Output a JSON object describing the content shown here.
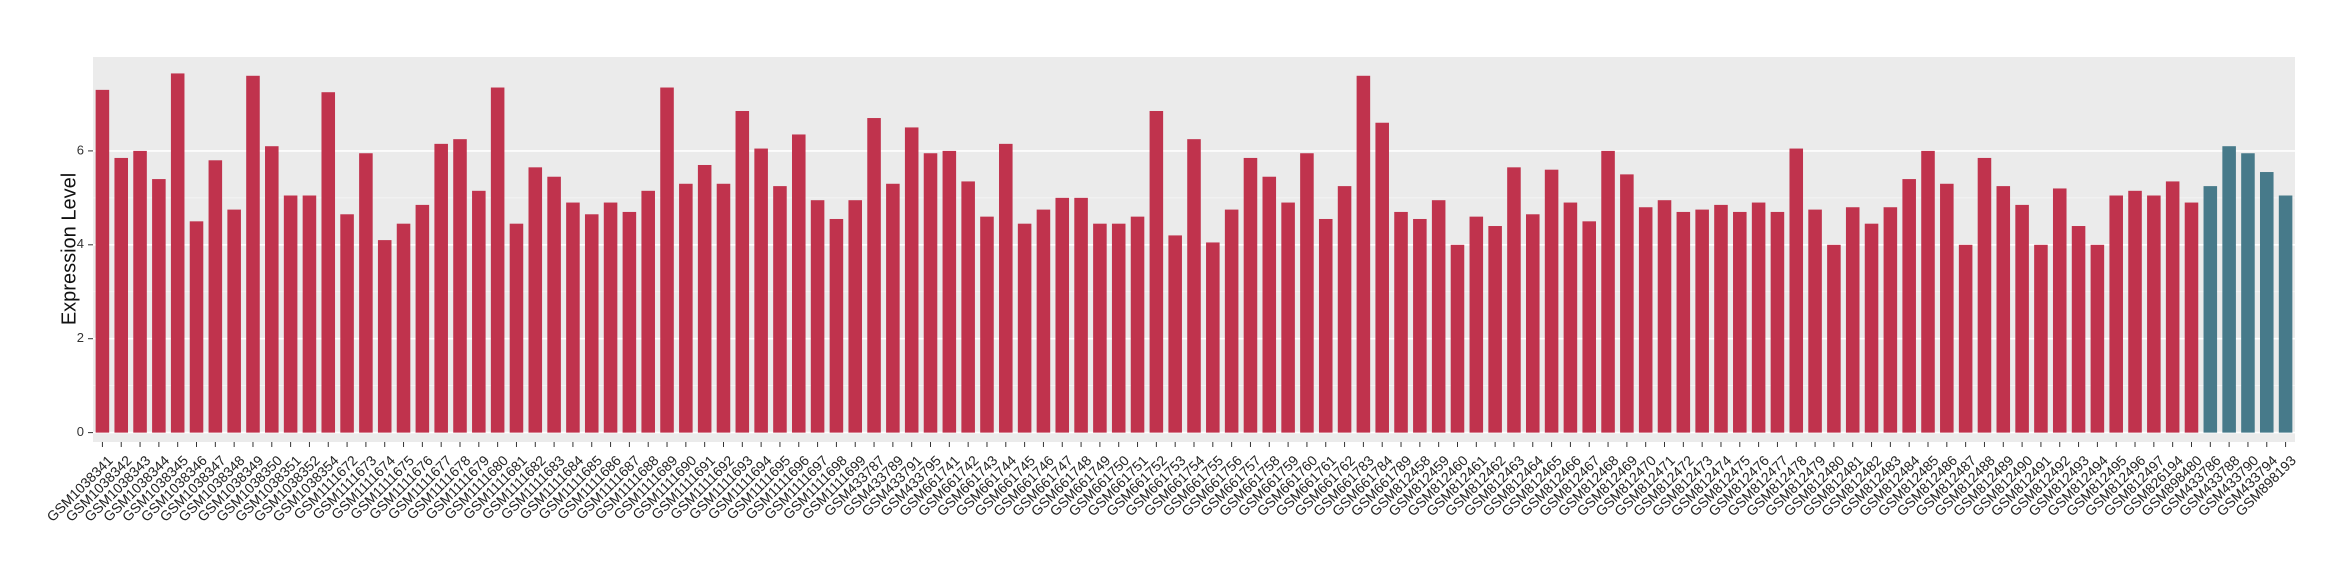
{
  "chart_data": {
    "type": "bar",
    "y_label": "Expression Level",
    "categories": [
      "GSM1038341",
      "GSM1038342",
      "GSM1038343",
      "GSM1038344",
      "GSM1038345",
      "GSM1038346",
      "GSM1038347",
      "GSM1038348",
      "GSM1038349",
      "GSM1038350",
      "GSM1038351",
      "GSM1038352",
      "GSM1038354",
      "GSM1111672",
      "GSM1111673",
      "GSM1111674",
      "GSM1111675",
      "GSM1111676",
      "GSM1111677",
      "GSM1111678",
      "GSM1111679",
      "GSM1111680",
      "GSM1111681",
      "GSM1111682",
      "GSM1111683",
      "GSM1111684",
      "GSM1111685",
      "GSM1111686",
      "GSM1111687",
      "GSM1111688",
      "GSM1111689",
      "GSM1111690",
      "GSM1111691",
      "GSM1111692",
      "GSM1111693",
      "GSM1111694",
      "GSM1111695",
      "GSM1111696",
      "GSM1111697",
      "GSM1111698",
      "GSM1111699",
      "GSM433787",
      "GSM433789",
      "GSM433791",
      "GSM433795",
      "GSM661741",
      "GSM661742",
      "GSM661743",
      "GSM661744",
      "GSM661745",
      "GSM661746",
      "GSM661747",
      "GSM661748",
      "GSM661749",
      "GSM661750",
      "GSM661751",
      "GSM661752",
      "GSM661753",
      "GSM661754",
      "GSM661755",
      "GSM661756",
      "GSM661757",
      "GSM661758",
      "GSM661759",
      "GSM661760",
      "GSM661761",
      "GSM661762",
      "GSM661783",
      "GSM661784",
      "GSM661789",
      "GSM812458",
      "GSM812459",
      "GSM812460",
      "GSM812461",
      "GSM812462",
      "GSM812463",
      "GSM812464",
      "GSM812465",
      "GSM812466",
      "GSM812467",
      "GSM812468",
      "GSM812469",
      "GSM812470",
      "GSM812471",
      "GSM812472",
      "GSM812473",
      "GSM812474",
      "GSM812475",
      "GSM812476",
      "GSM812477",
      "GSM812478",
      "GSM812479",
      "GSM812480",
      "GSM812481",
      "GSM812482",
      "GSM812483",
      "GSM812484",
      "GSM812485",
      "GSM812486",
      "GSM812487",
      "GSM812488",
      "GSM812489",
      "GSM812490",
      "GSM812491",
      "GSM812492",
      "GSM812493",
      "GSM812494",
      "GSM812495",
      "GSM812496",
      "GSM812497",
      "GSM826194",
      "GSM898480",
      "GSM433786",
      "GSM433788",
      "GSM433790",
      "GSM433794",
      "GSM898193"
    ],
    "values": [
      7.3,
      5.85,
      6.0,
      5.4,
      7.65,
      4.5,
      5.8,
      4.75,
      7.6,
      6.1,
      5.05,
      5.05,
      7.25,
      4.65,
      5.95,
      4.1,
      4.45,
      4.85,
      6.15,
      6.25,
      5.15,
      7.35,
      4.45,
      5.65,
      5.45,
      4.9,
      4.65,
      4.9,
      4.7,
      5.15,
      7.35,
      5.3,
      5.7,
      5.3,
      6.85,
      6.05,
      5.25,
      6.35,
      4.95,
      4.55,
      4.95,
      6.7,
      5.3,
      6.5,
      5.95,
      6.0,
      5.35,
      4.6,
      6.15,
      4.45,
      4.75,
      5.0,
      5.0,
      4.45,
      4.45,
      4.6,
      6.85,
      4.2,
      6.25,
      4.05,
      4.75,
      5.85,
      5.45,
      4.9,
      5.95,
      4.55,
      5.25,
      7.6,
      6.6,
      4.7,
      4.55,
      4.95,
      4.0,
      4.6,
      4.4,
      5.65,
      4.65,
      5.6,
      4.9,
      4.5,
      6.0,
      5.5,
      4.8,
      4.95,
      4.7,
      4.75,
      4.85,
      4.7,
      4.9,
      4.7,
      6.05,
      4.75,
      4.0,
      4.8,
      4.45,
      4.8,
      5.4,
      6.0,
      5.3,
      4.0,
      5.85,
      5.25,
      4.85,
      4.0,
      5.2,
      4.4,
      4.0,
      5.05,
      5.15,
      5.05,
      5.35,
      4.9,
      5.25,
      6.1,
      5.95,
      5.55,
      5.05
    ],
    "colors": [
      "#c0334d",
      "#c0334d",
      "#c0334d",
      "#c0334d",
      "#c0334d",
      "#c0334d",
      "#c0334d",
      "#c0334d",
      "#c0334d",
      "#c0334d",
      "#c0334d",
      "#c0334d",
      "#c0334d",
      "#c0334d",
      "#c0334d",
      "#c0334d",
      "#c0334d",
      "#c0334d",
      "#c0334d",
      "#c0334d",
      "#c0334d",
      "#c0334d",
      "#c0334d",
      "#c0334d",
      "#c0334d",
      "#c0334d",
      "#c0334d",
      "#c0334d",
      "#c0334d",
      "#c0334d",
      "#c0334d",
      "#c0334d",
      "#c0334d",
      "#c0334d",
      "#c0334d",
      "#c0334d",
      "#c0334d",
      "#c0334d",
      "#c0334d",
      "#c0334d",
      "#c0334d",
      "#c0334d",
      "#c0334d",
      "#c0334d",
      "#c0334d",
      "#c0334d",
      "#c0334d",
      "#c0334d",
      "#c0334d",
      "#c0334d",
      "#c0334d",
      "#c0334d",
      "#c0334d",
      "#c0334d",
      "#c0334d",
      "#c0334d",
      "#c0334d",
      "#c0334d",
      "#c0334d",
      "#c0334d",
      "#c0334d",
      "#c0334d",
      "#c0334d",
      "#c0334d",
      "#c0334d",
      "#c0334d",
      "#c0334d",
      "#c0334d",
      "#c0334d",
      "#c0334d",
      "#c0334d",
      "#c0334d",
      "#c0334d",
      "#c0334d",
      "#c0334d",
      "#c0334d",
      "#c0334d",
      "#c0334d",
      "#c0334d",
      "#c0334d",
      "#c0334d",
      "#c0334d",
      "#c0334d",
      "#c0334d",
      "#c0334d",
      "#c0334d",
      "#c0334d",
      "#c0334d",
      "#c0334d",
      "#c0334d",
      "#c0334d",
      "#c0334d",
      "#c0334d",
      "#c0334d",
      "#c0334d",
      "#c0334d",
      "#c0334d",
      "#c0334d",
      "#c0334d",
      "#c0334d",
      "#c0334d",
      "#c0334d",
      "#c0334d",
      "#c0334d",
      "#c0334d",
      "#c0334d",
      "#c0334d",
      "#c0334d",
      "#c0334d",
      "#c0334d",
      "#c0334d",
      "#c0334d",
      "#477a8a",
      "#477a8a",
      "#477a8a",
      "#477a8a",
      "#477a8a"
    ],
    "ylim": [
      -0.2,
      8.0
    ],
    "yticks": [
      0,
      2,
      4,
      6
    ],
    "grid": true
  }
}
